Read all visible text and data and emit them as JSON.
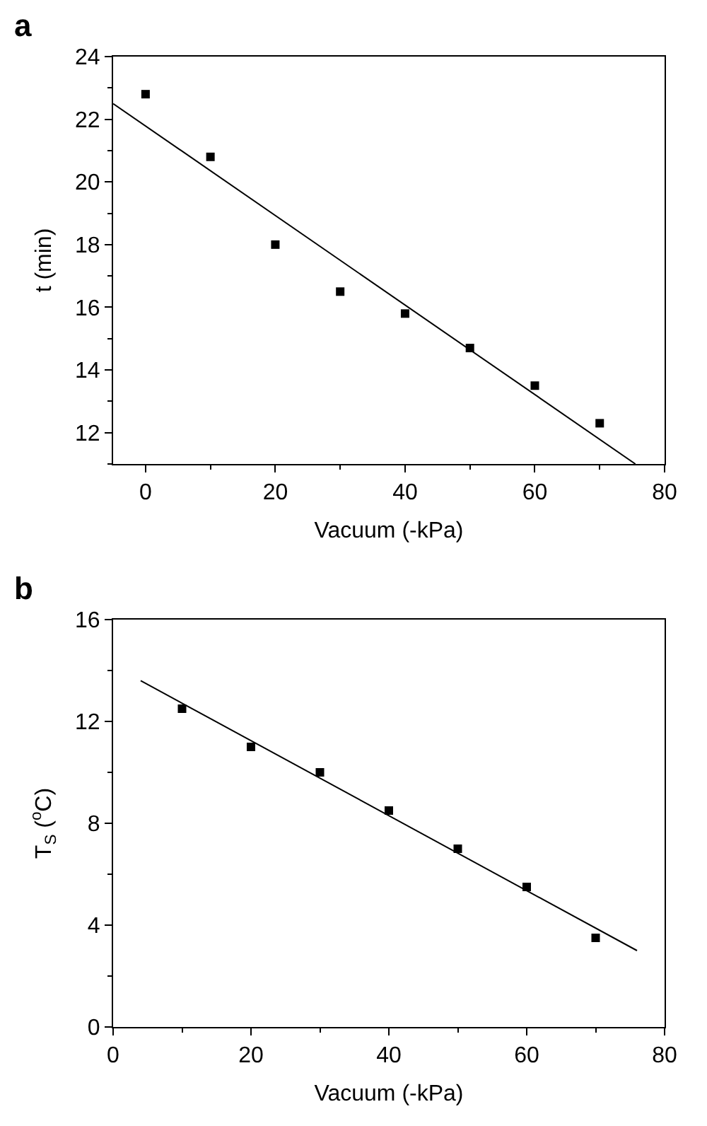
{
  "chart_data": [
    {
      "type": "scatter",
      "title": "a",
      "xlabel": "Vacuum (-kPa)",
      "ylabel": "t (min)",
      "xlim": [
        -5,
        80
      ],
      "xticks": [
        0,
        20,
        40,
        60,
        80
      ],
      "ylim": [
        11,
        24
      ],
      "yticks": [
        12,
        14,
        16,
        18,
        20,
        22,
        24
      ],
      "grid": false,
      "series": [
        {
          "marker": "square",
          "color": "#000000",
          "x": [
            0,
            10,
            20,
            30,
            40,
            50,
            60,
            70
          ],
          "values": [
            22.8,
            20.8,
            18.0,
            16.5,
            15.8,
            14.7,
            13.5,
            12.3
          ]
        },
        {
          "type": "line",
          "marker": "none",
          "color": "#000000",
          "line_style": "solid",
          "x": [
            -5,
            75.5
          ],
          "values": [
            22.5,
            11.0
          ]
        }
      ]
    },
    {
      "type": "scatter",
      "title": "b",
      "xlabel": "Vacuum (-kPa)",
      "ylabel": "T$_{S}$ ($^{o}$C)",
      "xlim": [
        0,
        80
      ],
      "xticks": [
        0,
        20,
        40,
        60,
        80
      ],
      "ylim": [
        0,
        16
      ],
      "yticks": [
        0,
        4,
        8,
        12,
        16
      ],
      "grid": false,
      "series": [
        {
          "marker": "square",
          "color": "#000000",
          "x": [
            10,
            20,
            30,
            40,
            50,
            60,
            70
          ],
          "values": [
            12.5,
            11.0,
            10.0,
            8.5,
            7.0,
            5.5,
            3.5
          ]
        },
        {
          "type": "line",
          "marker": "none",
          "color": "#000000",
          "line_style": "solid",
          "x": [
            4,
            76
          ],
          "values": [
            13.6,
            3.0
          ]
        }
      ]
    }
  ]
}
